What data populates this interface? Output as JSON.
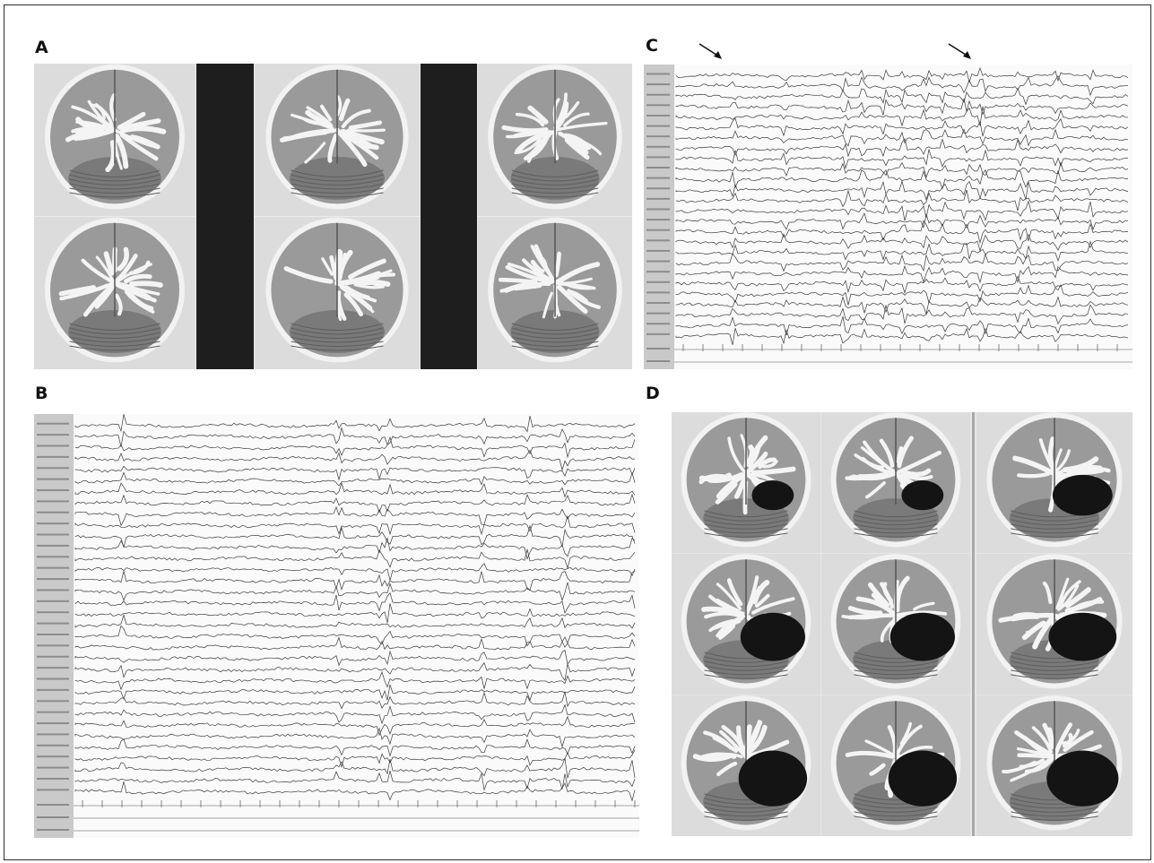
{
  "figure": {
    "panels": [
      {
        "letter": "A",
        "kind": "mri-coronal-grid"
      },
      {
        "letter": "B",
        "kind": "eeg-trace"
      },
      {
        "letter": "C",
        "kind": "eeg-trace-annotated"
      },
      {
        "letter": "D",
        "kind": "mri-postoperative-grid"
      }
    ],
    "panel_c_arrow_count": 2,
    "colors": {
      "border": "#2a2a2a",
      "trace": "#333333",
      "gutter": "#c9c9c9"
    }
  }
}
